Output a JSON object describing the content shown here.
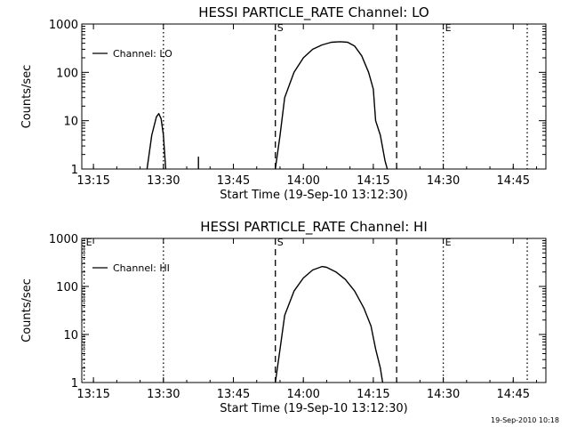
{
  "footer": {
    "timestamp": "19-Sep-2010 10:18"
  },
  "chart_data": [
    {
      "type": "line",
      "title": "HESSI PARTICLE_RATE Channel: LO",
      "xlabel": "Start Time (19-Sep-10 13:12:30)",
      "ylabel": "Counts/sec",
      "yscale": "log",
      "xlim": [
        "13:12:30",
        "14:52:00"
      ],
      "ylim": [
        1,
        1000
      ],
      "x_ticks": [
        "13:15",
        "13:30",
        "13:45",
        "14:00",
        "14:15",
        "14:30",
        "14:45"
      ],
      "y_ticks": [
        "1",
        "10",
        "100",
        "1000"
      ],
      "legend": {
        "placement": "top-left",
        "entries": [
          "Channel: LO"
        ]
      },
      "vlines": [
        {
          "x": "13:30",
          "style": "dotted",
          "label": ""
        },
        {
          "x": "13:54",
          "style": "dashed",
          "label": "S"
        },
        {
          "x": "14:20",
          "style": "dashed",
          "label": ""
        },
        {
          "x": "14:30",
          "style": "dotted",
          "label": "E"
        },
        {
          "x": "14:48",
          "style": "dotted",
          "label": ""
        }
      ],
      "series": [
        {
          "name": "Channel: LO",
          "segments": [
            [
              [
                "13:26:30",
                1
              ],
              [
                "13:27:30",
                5
              ],
              [
                "13:28:30",
                12
              ],
              [
                "13:29:00",
                14
              ],
              [
                "13:29:30",
                11
              ],
              [
                "13:30:00",
                5
              ],
              [
                "13:30:30",
                1
              ]
            ],
            [
              [
                "13:37:30",
                1
              ],
              [
                "13:37:30",
                1.8
              ]
            ],
            [
              [
                "13:54:00",
                1
              ],
              [
                "13:55:00",
                5
              ],
              [
                "13:56:00",
                30
              ],
              [
                "13:58:00",
                100
              ],
              [
                "14:00:00",
                200
              ],
              [
                "14:02:00",
                300
              ],
              [
                "14:04:00",
                370
              ],
              [
                "14:06:00",
                420
              ],
              [
                "14:08:00",
                430
              ],
              [
                "14:09:30",
                420
              ],
              [
                "14:11:00",
                350
              ],
              [
                "14:12:30",
                220
              ],
              [
                "14:14:00",
                100
              ],
              [
                "14:15:00",
                45
              ],
              [
                "14:15:30",
                10
              ],
              [
                "14:16:30",
                5
              ],
              [
                "14:17:30",
                1.5
              ],
              [
                "14:18:00",
                1
              ]
            ]
          ]
        }
      ]
    },
    {
      "type": "line",
      "title": "HESSI PARTICLE_RATE Channel: HI",
      "xlabel": "Start Time (19-Sep-10 13:12:30)",
      "ylabel": "Counts/sec",
      "yscale": "log",
      "xlim": [
        "13:12:30",
        "14:52:00"
      ],
      "ylim": [
        1,
        1000
      ],
      "x_ticks": [
        "13:15",
        "13:30",
        "13:45",
        "14:00",
        "14:15",
        "14:30",
        "14:45"
      ],
      "y_ticks": [
        "1",
        "10",
        "100",
        "1000"
      ],
      "legend": {
        "placement": "top-left",
        "entries": [
          "Channel: HI"
        ]
      },
      "vlines": [
        {
          "x": "13:13",
          "style": "dotted",
          "label": "E"
        },
        {
          "x": "13:30",
          "style": "dotted",
          "label": ""
        },
        {
          "x": "13:54",
          "style": "dashed",
          "label": "S"
        },
        {
          "x": "14:20",
          "style": "dashed",
          "label": ""
        },
        {
          "x": "14:30",
          "style": "dotted",
          "label": "E"
        },
        {
          "x": "14:48",
          "style": "dotted",
          "label": ""
        }
      ],
      "series": [
        {
          "name": "Channel: HI",
          "segments": [
            [
              [
                "13:54:00",
                1
              ],
              [
                "13:55:00",
                5
              ],
              [
                "13:56:00",
                25
              ],
              [
                "13:58:00",
                80
              ],
              [
                "14:00:00",
                150
              ],
              [
                "14:02:00",
                220
              ],
              [
                "14:04:00",
                260
              ],
              [
                "14:05:00",
                250
              ],
              [
                "14:07:00",
                200
              ],
              [
                "14:09:00",
                140
              ],
              [
                "14:11:00",
                80
              ],
              [
                "14:13:00",
                35
              ],
              [
                "14:14:30",
                15
              ],
              [
                "14:15:30",
                5
              ],
              [
                "14:16:30",
                2
              ],
              [
                "14:17:00",
                1
              ]
            ]
          ]
        }
      ]
    }
  ]
}
